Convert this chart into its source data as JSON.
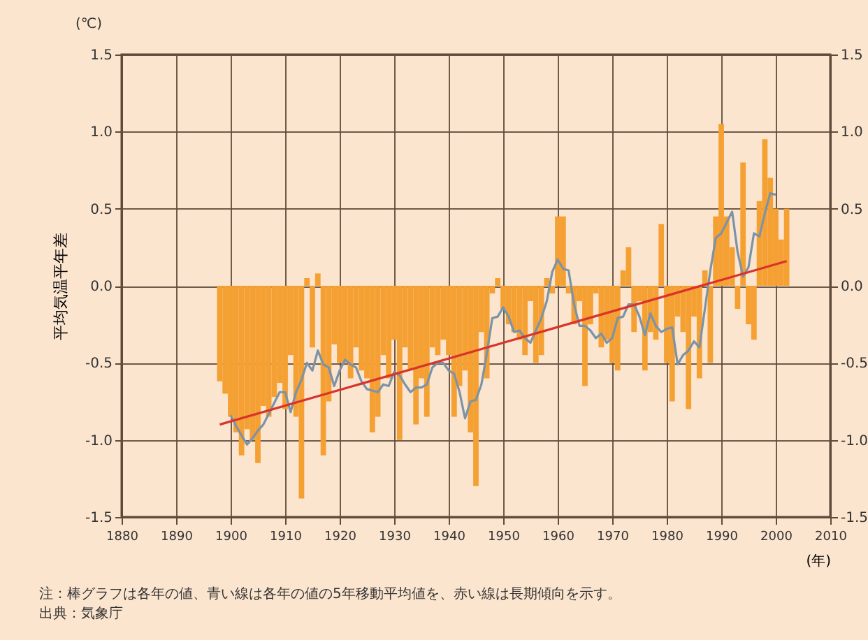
{
  "chart_data": {
    "type": "bar",
    "ylabel": "平均気温平年差",
    "xlabel": "(年)",
    "annotations": [
      "(℃)",
      "注：棒グラフは各年の値、青い線は各年の値の5年移動平均値を、赤い線は長期傾向を示す。",
      "出典：気象庁"
    ],
    "xlim": [
      1880,
      2010
    ],
    "xticks": [
      1880,
      1890,
      1900,
      1910,
      1920,
      1930,
      1940,
      1950,
      1960,
      1970,
      1980,
      1990,
      2000,
      2010
    ],
    "ylim": [
      -1.5,
      1.5
    ],
    "yticks": [
      {
        "value": -1.5,
        "label": "-1.5"
      },
      {
        "value": -1,
        "label": "-1.0"
      },
      {
        "value": -0.5,
        "label": "-0.5"
      },
      {
        "value": 0,
        "label": "0.0"
      },
      {
        "value": 0.5,
        "label": "0.5"
      },
      {
        "value": 1,
        "label": "1.0"
      },
      {
        "value": 1.5,
        "label": "1.5"
      }
    ],
    "y2lim": [
      -1.5,
      1.5
    ],
    "y2ticks": [
      {
        "value": -1.5,
        "label": "-1.5"
      },
      {
        "value": -1,
        "label": "-1.0"
      },
      {
        "value": -0.5,
        "label": "-0.5"
      },
      {
        "value": 0,
        "label": "0.0"
      },
      {
        "value": 0.5,
        "label": "0.5"
      },
      {
        "value": 1,
        "label": "1.0"
      },
      {
        "value": 1.5,
        "label": "1.5"
      }
    ],
    "grid": true,
    "series": [
      {
        "color": "#f5a033",
        "x": [
          1898,
          1899,
          1900,
          1901,
          1902,
          1903,
          1904,
          1905,
          1906,
          1907,
          1908,
          1909,
          1910,
          1911,
          1912,
          1913,
          1914,
          1915,
          1916,
          1917,
          1918,
          1919,
          1920,
          1921,
          1922,
          1923,
          1924,
          1925,
          1926,
          1927,
          1928,
          1929,
          1930,
          1931,
          1932,
          1933,
          1934,
          1935,
          1936,
          1937,
          1938,
          1939,
          1940,
          1941,
          1942,
          1943,
          1944,
          1945,
          1946,
          1947,
          1948,
          1949,
          1950,
          1951,
          1952,
          1953,
          1954,
          1955,
          1956,
          1957,
          1958,
          1959,
          1960,
          1961,
          1962,
          1963,
          1964,
          1965,
          1966,
          1967,
          1968,
          1969,
          1970,
          1971,
          1972,
          1973,
          1974,
          1975,
          1976,
          1977,
          1978,
          1979,
          1980,
          1981,
          1982,
          1983,
          1984,
          1985,
          1986,
          1987,
          1988,
          1989,
          1990,
          1991,
          1992,
          1993,
          1994,
          1995,
          1996,
          1997,
          1998,
          1999,
          2000,
          2001,
          2002
        ],
        "values": [
          -0.62,
          -0.7,
          -0.85,
          -0.95,
          -1.1,
          -0.93,
          -1.0,
          -1.15,
          -0.78,
          -0.85,
          -0.72,
          -0.63,
          -0.8,
          -0.45,
          -0.85,
          -1.38,
          0.05,
          -0.4,
          0.08,
          -1.1,
          -0.75,
          -0.38,
          -0.5,
          -0.5,
          -0.6,
          -0.4,
          -0.55,
          -0.6,
          -0.95,
          -0.85,
          -0.45,
          -0.6,
          -0.35,
          -1.0,
          -0.4,
          -0.55,
          -0.9,
          -0.6,
          -0.85,
          -0.4,
          -0.45,
          -0.35,
          -0.45,
          -0.85,
          -0.65,
          -0.55,
          -0.95,
          -1.3,
          -0.3,
          -0.6,
          -0.05,
          0.05,
          -0.15,
          -0.25,
          -0.3,
          -0.35,
          -0.45,
          -0.1,
          -0.5,
          -0.45,
          0.05,
          -0.05,
          0.45,
          0.45,
          -0.05,
          -0.25,
          -0.1,
          -0.65,
          -0.25,
          -0.05,
          -0.4,
          -0.35,
          -0.5,
          -0.55,
          0.1,
          0.25,
          -0.3,
          -0.1,
          -0.55,
          -0.3,
          -0.35,
          0.4,
          -0.5,
          -0.75,
          -0.2,
          -0.3,
          -0.8,
          -0.2,
          -0.6,
          0.1,
          -0.5,
          0.45,
          1.05,
          0.45,
          0.25,
          -0.15,
          0.8,
          -0.25,
          -0.35,
          0.55,
          0.95,
          0.7,
          0.5,
          0.3,
          0.5
        ]
      },
      {
        "type": "line",
        "color": "#7b93a8",
        "x": [
          1900,
          1901,
          1902,
          1903,
          1904,
          1905,
          1906,
          1907,
          1908,
          1909,
          1910,
          1911,
          1912,
          1913,
          1914,
          1915,
          1916,
          1917,
          1918,
          1919,
          1920,
          1921,
          1922,
          1923,
          1924,
          1925,
          1926,
          1927,
          1928,
          1929,
          1930,
          1931,
          1932,
          1933,
          1934,
          1935,
          1936,
          1937,
          1938,
          1939,
          1940,
          1941,
          1942,
          1943,
          1944,
          1945,
          1946,
          1947,
          1948,
          1949,
          1950,
          1951,
          1952,
          1953,
          1954,
          1955,
          1956,
          1957,
          1958,
          1959,
          1960,
          1961,
          1962,
          1963,
          1964,
          1965,
          1966,
          1967,
          1968,
          1969,
          1970,
          1971,
          1972,
          1973,
          1974,
          1975,
          1976,
          1977,
          1978,
          1979,
          1980,
          1981,
          1982,
          1983,
          1984,
          1985,
          1986,
          1987,
          1988,
          1989,
          1990,
          1991,
          1992,
          1993,
          1994,
          1995,
          1996,
          1997,
          1998,
          1999,
          2000
        ],
        "values": [
          -0.84,
          -0.91,
          -0.97,
          -1.03,
          -0.99,
          -0.94,
          -0.9,
          -0.83,
          -0.76,
          -0.69,
          -0.69,
          -0.82,
          -0.69,
          -0.61,
          -0.5,
          -0.55,
          -0.42,
          -0.51,
          -0.53,
          -0.65,
          -0.55,
          -0.48,
          -0.51,
          -0.53,
          -0.62,
          -0.67,
          -0.68,
          -0.69,
          -0.64,
          -0.65,
          -0.56,
          -0.58,
          -0.64,
          -0.69,
          -0.66,
          -0.66,
          -0.64,
          -0.53,
          -0.5,
          -0.5,
          -0.55,
          -0.57,
          -0.69,
          -0.86,
          -0.75,
          -0.74,
          -0.64,
          -0.44,
          -0.21,
          -0.2,
          -0.14,
          -0.2,
          -0.3,
          -0.29,
          -0.34,
          -0.37,
          -0.29,
          -0.21,
          -0.1,
          0.09,
          0.17,
          0.11,
          0.1,
          -0.12,
          -0.26,
          -0.26,
          -0.29,
          -0.34,
          -0.31,
          -0.37,
          -0.34,
          -0.21,
          -0.2,
          -0.12,
          -0.12,
          -0.2,
          -0.32,
          -0.18,
          -0.26,
          -0.3,
          -0.28,
          -0.27,
          -0.51,
          -0.45,
          -0.42,
          -0.36,
          -0.4,
          -0.15,
          0.1,
          0.31,
          0.34,
          0.41,
          0.48,
          0.22,
          0.06,
          0.12,
          0.34,
          0.32,
          0.47,
          0.6,
          0.59
        ]
      },
      {
        "type": "line",
        "color": "#d8342a",
        "x": [
          1898,
          2002
        ],
        "values": [
          -0.9,
          0.16
        ]
      }
    ]
  }
}
